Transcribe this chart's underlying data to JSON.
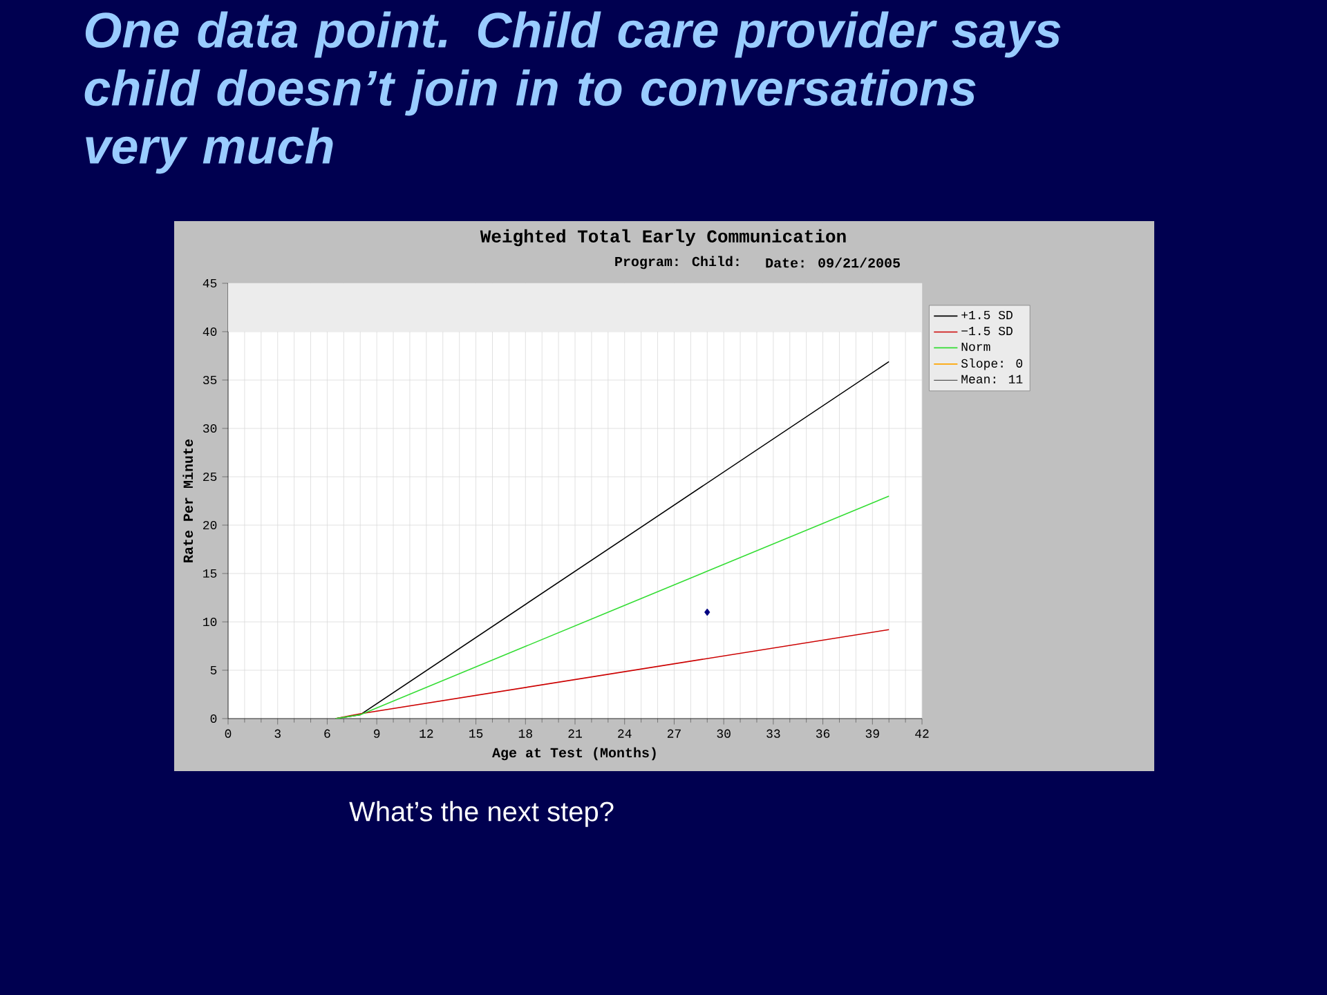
{
  "chart_data": {
    "type": "line",
    "title": "One data point. Child care provider says child doesn’t join in to conversations very much",
    "subtitle": "Weighted Total Early Communication",
    "xlabel": "Age at Test (Months)",
    "ylabel": "Rate Per Minute",
    "xlim": [
      0,
      42
    ],
    "xticks": [
      0,
      3,
      6,
      9,
      12,
      15,
      18,
      21,
      24,
      27,
      30,
      33,
      36,
      39,
      42
    ],
    "ylim": [
      0,
      45
    ],
    "yticks": [
      0,
      5,
      10,
      15,
      20,
      25,
      30,
      35,
      40,
      45
    ],
    "grid": true,
    "legend": "right",
    "bands": [
      {
        "axis": "y",
        "from": 40,
        "to": 45,
        "color": "#ececec"
      }
    ],
    "series": [
      {
        "type": "scatter",
        "marker": "diamond",
        "color": "#000080",
        "x": [
          29
        ],
        "values": [
          11
        ]
      },
      {
        "name": "+1.5 SD",
        "color": "#000000",
        "x": [
          6.5,
          8,
          40
        ],
        "values": [
          0,
          0.4,
          36.9
        ]
      },
      {
        "name": "−1.5 SD",
        "color": "#cc0000",
        "x": [
          6.5,
          8,
          40
        ],
        "values": [
          0,
          0.5,
          9.2
        ]
      },
      {
        "name": "Norm",
        "color": "#33dd33",
        "x": [
          6.5,
          8,
          23,
          40
        ],
        "values": [
          0,
          0.4,
          11,
          23
        ]
      }
    ],
    "annotations": [
      "Program:      Child:",
      "Date: 09/21/2005",
      "Slope: 0",
      "Mean: 11",
      "What’s the next step?"
    ]
  }
}
